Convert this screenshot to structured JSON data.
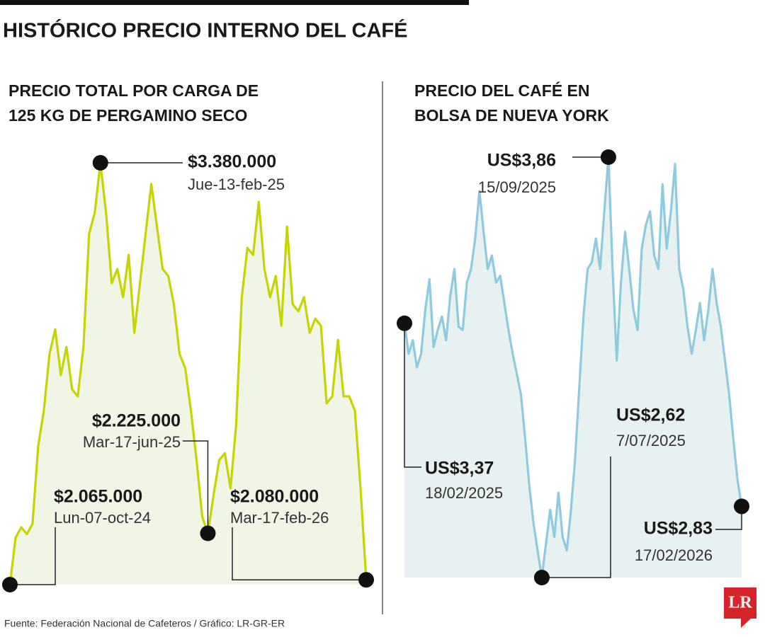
{
  "title": "HISTÓRICO PRECIO INTERNO DEL CAFÉ",
  "source": "Fuente: Federación Nacional de Cafeteros / Gráfico: LR-GR-ER",
  "logo": "LR",
  "chart_data": [
    {
      "type": "line",
      "title": [
        "PRECIO TOTAL POR CARGA DE",
        "125 KG DE PERGAMINO SECO"
      ],
      "color": "#c8d400",
      "fill": "#f1f5e6",
      "values": [
        2065000,
        2211000,
        2244000,
        2222000,
        2255000,
        2497000,
        2608000,
        2784000,
        2861000,
        2718000,
        2806000,
        2674000,
        2652000,
        2806000,
        3159000,
        3225000,
        3380000,
        3225000,
        3005000,
        3049000,
        2961000,
        3093000,
        2850000,
        3005000,
        3159000,
        3314000,
        3181000,
        3049000,
        3027000,
        2939000,
        2784000,
        2740000,
        2608000,
        2453000,
        2277000,
        2225000,
        2343000,
        2453000,
        2475000,
        2365000,
        2564000,
        2961000,
        3115000,
        3093000,
        3258000,
        3049000,
        2961000,
        3027000,
        2872000,
        3181000,
        2939000,
        2917000,
        2961000,
        2850000,
        2894000,
        2872000,
        2630000,
        2652000,
        2828000,
        2652000,
        2652000,
        2608000,
        2365000,
        2080000
      ],
      "annotations": [
        {
          "value": 3380000,
          "label": "$3.380.000",
          "date": "Jue-13-feb-25"
        },
        {
          "value": 2225000,
          "label": "$2.225.000",
          "date": "Mar-17-jun-25"
        },
        {
          "value": 2065000,
          "label": "$2.065.000",
          "date": "Lun-07-oct-24"
        },
        {
          "value": 2080000,
          "label": "$2.080.000",
          "date": "Mar-17-feb-26"
        }
      ]
    },
    {
      "type": "line",
      "title": [
        "PRECIO DEL CAFÉ EN",
        "BOLSA DE NUEVA YORK"
      ],
      "color": "#8ecae0",
      "fill": "#e8f1f1",
      "values": [
        3.37,
        3.28,
        3.32,
        3.24,
        3.28,
        3.41,
        3.5,
        3.3,
        3.35,
        3.39,
        3.32,
        3.45,
        3.53,
        3.36,
        3.35,
        3.49,
        3.53,
        3.62,
        3.76,
        3.64,
        3.53,
        3.57,
        3.49,
        3.51,
        3.43,
        3.35,
        3.28,
        3.22,
        3.16,
        3.03,
        2.89,
        2.78,
        2.7,
        2.62,
        2.72,
        2.82,
        2.74,
        2.87,
        2.74,
        2.7,
        2.82,
        2.97,
        3.18,
        3.39,
        3.53,
        3.55,
        3.62,
        3.53,
        3.7,
        3.86,
        3.53,
        3.26,
        3.49,
        3.64,
        3.53,
        3.41,
        3.35,
        3.59,
        3.66,
        3.7,
        3.57,
        3.53,
        3.78,
        3.59,
        3.7,
        3.84,
        3.53,
        3.47,
        3.36,
        3.28,
        3.35,
        3.43,
        3.32,
        3.41,
        3.53,
        3.43,
        3.36,
        3.26,
        3.16,
        3.03,
        2.91,
        2.83
      ],
      "annotations": [
        {
          "value": 3.86,
          "label": "US$3,86",
          "date": "15/09/2025"
        },
        {
          "value": 3.37,
          "label": "US$3,37",
          "date": "18/02/2025"
        },
        {
          "value": 2.62,
          "label": "US$2,62",
          "date": "7/07/2025"
        },
        {
          "value": 2.83,
          "label": "US$2,83",
          "date": "17/02/2026"
        }
      ]
    }
  ]
}
